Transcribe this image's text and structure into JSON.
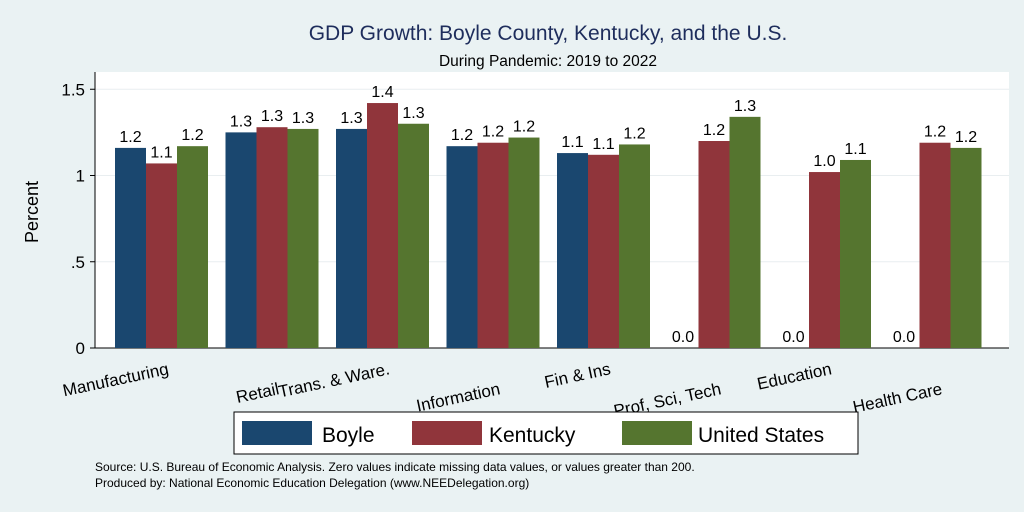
{
  "chart_data": {
    "type": "bar",
    "title": "GDP Growth: Boyle County, Kentucky, and the U.S.",
    "subtitle": "During Pandemic: 2019 to 2022",
    "ylabel": "Percent",
    "xlabel": "",
    "ylim": [
      0,
      1.6
    ],
    "yticks": [
      0,
      0.5,
      1,
      1.5
    ],
    "ytick_labels": [
      "0",
      ".5",
      "1",
      "1.5"
    ],
    "grid": true,
    "legend_position": "bottom",
    "categories": [
      "Manufacturing",
      "Retail",
      "Trans. & Ware.",
      "Information",
      "Fin & Ins",
      "Prof, Sci, Tech",
      "Education",
      "Health Care"
    ],
    "series": [
      {
        "name": "Boyle",
        "color": "#1a476f",
        "values": [
          1.16,
          1.25,
          1.27,
          1.17,
          1.13,
          0.0,
          0.0,
          0.0
        ],
        "labels": [
          "1.2",
          "1.3",
          "1.3",
          "1.2",
          "1.1",
          "0.0",
          "0.0",
          "0.0"
        ]
      },
      {
        "name": "Kentucky",
        "color": "#90353b",
        "values": [
          1.07,
          1.28,
          1.42,
          1.19,
          1.12,
          1.2,
          1.02,
          1.19
        ],
        "labels": [
          "1.1",
          "1.3",
          "1.4",
          "1.2",
          "1.1",
          "1.2",
          "1.0",
          "1.2"
        ]
      },
      {
        "name": "United States",
        "color": "#55752f",
        "values": [
          1.17,
          1.27,
          1.3,
          1.22,
          1.18,
          1.34,
          1.09,
          1.16
        ],
        "labels": [
          "1.2",
          "1.3",
          "1.3",
          "1.2",
          "1.2",
          "1.3",
          "1.1",
          "1.2"
        ]
      }
    ],
    "notes": [
      "Source: U.S. Bureau of Economic Analysis. Zero values indicate missing data values, or values greater than 200.",
      "Produced by: National Economic Education Delegation (www.NEEDelegation.org)"
    ]
  }
}
